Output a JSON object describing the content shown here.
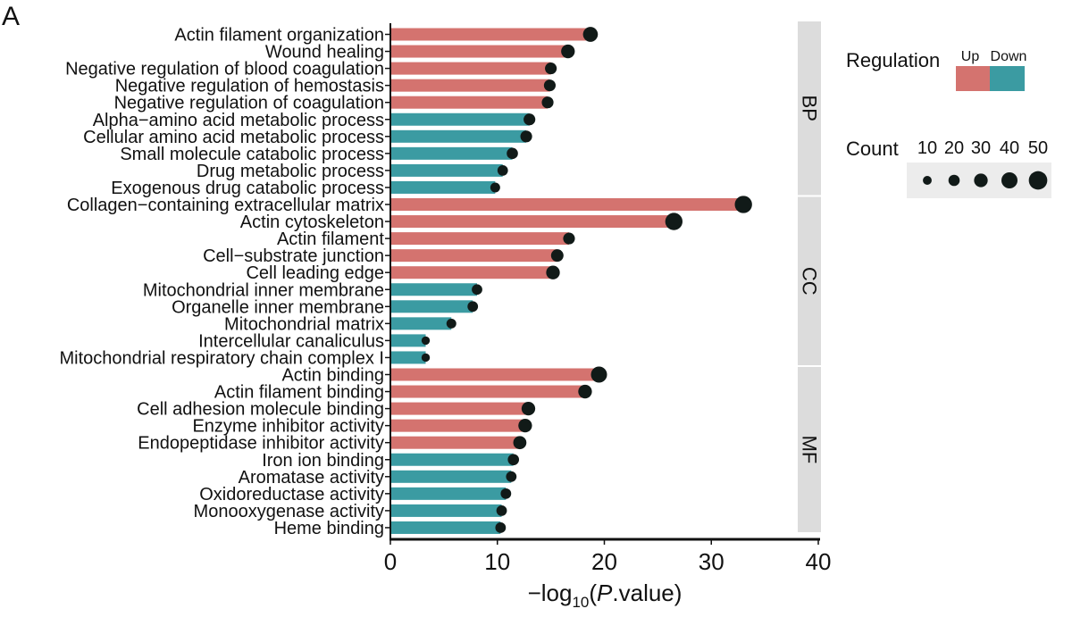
{
  "panel_label": "A",
  "chart_data": {
    "type": "bar",
    "orientation": "horizontal",
    "xlabel_parts": {
      "prefix": "−log",
      "sub": "10",
      "open": "(",
      "italic": "P",
      "rest": ".value)"
    },
    "xlim": [
      0,
      40
    ],
    "xticks": [
      0,
      10,
      20,
      30,
      40
    ],
    "grid": false,
    "legend_placement": "right",
    "colors": {
      "Up": "#d4736f",
      "Down": "#3b9ba2",
      "dot": "#111a18",
      "strip": "#dcdcdc"
    },
    "facets": [
      {
        "label": "BP",
        "terms": [
          {
            "name": "Actin filament organization",
            "value": 18.7,
            "count": 35,
            "regulation": "Up"
          },
          {
            "name": "Wound healing",
            "value": 16.6,
            "count": 30,
            "regulation": "Up"
          },
          {
            "name": "Negative regulation of blood coagulation",
            "value": 15.0,
            "count": 22,
            "regulation": "Up"
          },
          {
            "name": "Negative regulation of hemostasis",
            "value": 14.9,
            "count": 22,
            "regulation": "Up"
          },
          {
            "name": "Negative regulation of coagulation",
            "value": 14.7,
            "count": 22,
            "regulation": "Up"
          },
          {
            "name": "Alpha−amino acid metabolic process",
            "value": 13.0,
            "count": 22,
            "regulation": "Down"
          },
          {
            "name": "Cellular amino acid metabolic process",
            "value": 12.7,
            "count": 22,
            "regulation": "Down"
          },
          {
            "name": "Small molecule catabolic process",
            "value": 11.4,
            "count": 20,
            "regulation": "Down"
          },
          {
            "name": "Drug metabolic process",
            "value": 10.5,
            "count": 17,
            "regulation": "Down"
          },
          {
            "name": "Exogenous drug catabolic process",
            "value": 9.8,
            "count": 14,
            "regulation": "Down"
          }
        ]
      },
      {
        "label": "CC",
        "terms": [
          {
            "name": "Collagen−containing extracellular matrix",
            "value": 33.0,
            "count": 45,
            "regulation": "Up"
          },
          {
            "name": "Actin cytoskeleton",
            "value": 26.5,
            "count": 45,
            "regulation": "Up"
          },
          {
            "name": "Actin filament",
            "value": 16.7,
            "count": 22,
            "regulation": "Up"
          },
          {
            "name": "Cell−substrate junction",
            "value": 15.6,
            "count": 25,
            "regulation": "Up"
          },
          {
            "name": "Cell leading edge",
            "value": 15.2,
            "count": 30,
            "regulation": "Up"
          },
          {
            "name": "Mitochondrial inner membrane",
            "value": 8.1,
            "count": 17,
            "regulation": "Down"
          },
          {
            "name": "Organelle inner membrane",
            "value": 7.7,
            "count": 17,
            "regulation": "Down"
          },
          {
            "name": "Mitochondrial matrix",
            "value": 5.7,
            "count": 14,
            "regulation": "Down"
          },
          {
            "name": "Intercellular canaliculus",
            "value": 3.3,
            "count": 8,
            "regulation": "Down"
          },
          {
            "name": "Mitochondrial respiratory chain complex I",
            "value": 3.3,
            "count": 8,
            "regulation": "Down"
          }
        ]
      },
      {
        "label": "MF",
        "terms": [
          {
            "name": "Actin binding",
            "value": 19.5,
            "count": 40,
            "regulation": "Up"
          },
          {
            "name": "Actin filament binding",
            "value": 18.2,
            "count": 30,
            "regulation": "Up"
          },
          {
            "name": "Cell adhesion molecule binding",
            "value": 12.9,
            "count": 30,
            "regulation": "Up"
          },
          {
            "name": "Enzyme inhibitor activity",
            "value": 12.6,
            "count": 30,
            "regulation": "Up"
          },
          {
            "name": "Endopeptidase inhibitor activity",
            "value": 12.1,
            "count": 28,
            "regulation": "Up"
          },
          {
            "name": "Iron ion binding",
            "value": 11.5,
            "count": 20,
            "regulation": "Down"
          },
          {
            "name": "Aromatase activity",
            "value": 11.3,
            "count": 17,
            "regulation": "Down"
          },
          {
            "name": "Oxidoreductase activity",
            "value": 10.8,
            "count": 17,
            "regulation": "Down"
          },
          {
            "name": "Monooxygenase activity",
            "value": 10.4,
            "count": 17,
            "regulation": "Down"
          },
          {
            "name": "Heme binding",
            "value": 10.3,
            "count": 17,
            "regulation": "Down"
          }
        ]
      }
    ],
    "legend_regulation": {
      "title": "Regulation",
      "items": [
        "Up",
        "Down"
      ]
    },
    "legend_count": {
      "title": "Count",
      "values": [
        10,
        20,
        30,
        40,
        50
      ]
    }
  }
}
